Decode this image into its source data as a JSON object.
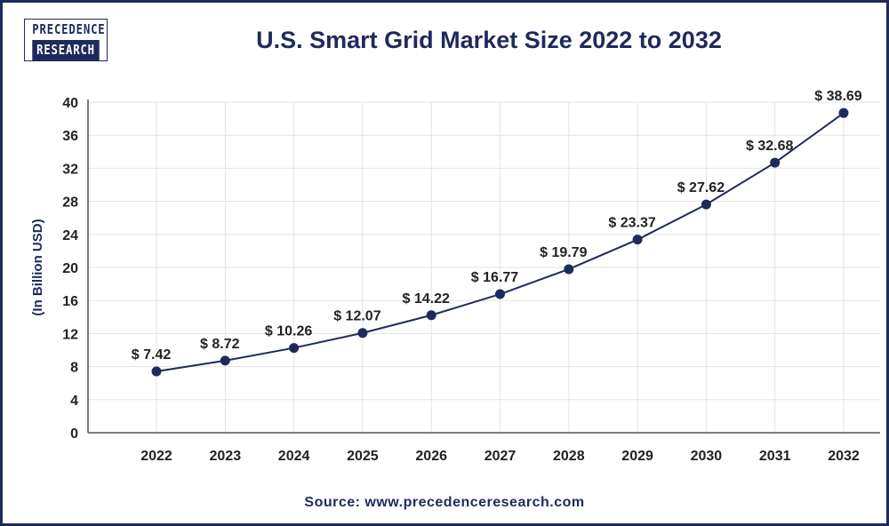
{
  "logo": {
    "line1": "PRECEDENCE",
    "line2": "RESEARCH"
  },
  "source": "Source: www.precedenceresearch.com",
  "colors": {
    "line": "#1f2a5c",
    "marker": "#1f2a5c",
    "grid": "#e3e3e3",
    "text": "#1f2a5c"
  },
  "chart_data": {
    "type": "line",
    "title": "U.S. Smart Grid Market Size 2022 to 2032",
    "xlabel": "",
    "ylabel": "(In Billion USD)",
    "categories": [
      "2022",
      "2023",
      "2024",
      "2025",
      "2026",
      "2027",
      "2028",
      "2029",
      "2030",
      "2031",
      "2032"
    ],
    "values": [
      7.42,
      8.72,
      10.26,
      12.07,
      14.22,
      16.77,
      19.79,
      23.37,
      27.62,
      32.68,
      38.69
    ],
    "data_labels": [
      "$ 7.42",
      "$ 8.72",
      "$ 10.26",
      "$ 12.07",
      "$ 14.22",
      "$ 16.77",
      "$ 19.79",
      "$ 23.37",
      "$ 27.62",
      "$ 32.68",
      "$ 38.69"
    ],
    "ylim": [
      0,
      40
    ],
    "yticks": [
      0,
      4,
      8,
      12,
      16,
      20,
      24,
      28,
      32,
      36,
      40
    ],
    "grid": true,
    "legend": "none"
  }
}
